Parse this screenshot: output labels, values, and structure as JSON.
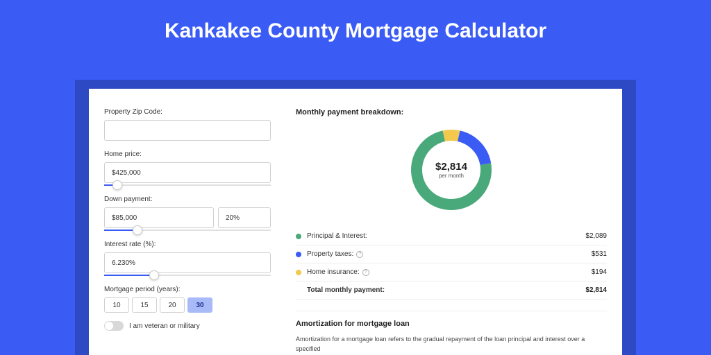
{
  "page": {
    "title": "Kankakee County Mortgage Calculator",
    "background_color": "#3a5cf5",
    "shadow_color": "#2e49c4"
  },
  "form": {
    "zip": {
      "label": "Property Zip Code:",
      "value": ""
    },
    "home_price": {
      "label": "Home price:",
      "value": "$425,000",
      "slider_pct": 8
    },
    "down_payment": {
      "label": "Down payment:",
      "value": "$85,000",
      "pct_value": "20%",
      "slider_pct": 20
    },
    "interest_rate": {
      "label": "Interest rate (%):",
      "value": "6.230%",
      "slider_pct": 30
    },
    "period": {
      "label": "Mortgage period (years):",
      "options": [
        "10",
        "15",
        "20",
        "30"
      ],
      "selected": "30"
    },
    "veteran": {
      "label": "I am veteran or military",
      "checked": false
    }
  },
  "breakdown": {
    "title": "Monthly payment breakdown:",
    "center_amount": "$2,814",
    "center_sub": "per month",
    "items": [
      {
        "label": "Principal & Interest:",
        "value": "$2,089",
        "numeric": 2089,
        "color": "#4aa97a",
        "info": false
      },
      {
        "label": "Property taxes:",
        "value": "$531",
        "numeric": 531,
        "color": "#3a5cf5",
        "info": true
      },
      {
        "label": "Home insurance:",
        "value": "$194",
        "numeric": 194,
        "color": "#f2c94c",
        "info": true
      }
    ],
    "total": {
      "label": "Total monthly payment:",
      "value": "$2,814"
    },
    "donut": {
      "ring_width": 16,
      "radius": 50,
      "background": "#ffffff"
    }
  },
  "amortization": {
    "title": "Amortization for mortgage loan",
    "desc": "Amortization for a mortgage loan refers to the gradual repayment of the loan principal and interest over a specified"
  }
}
